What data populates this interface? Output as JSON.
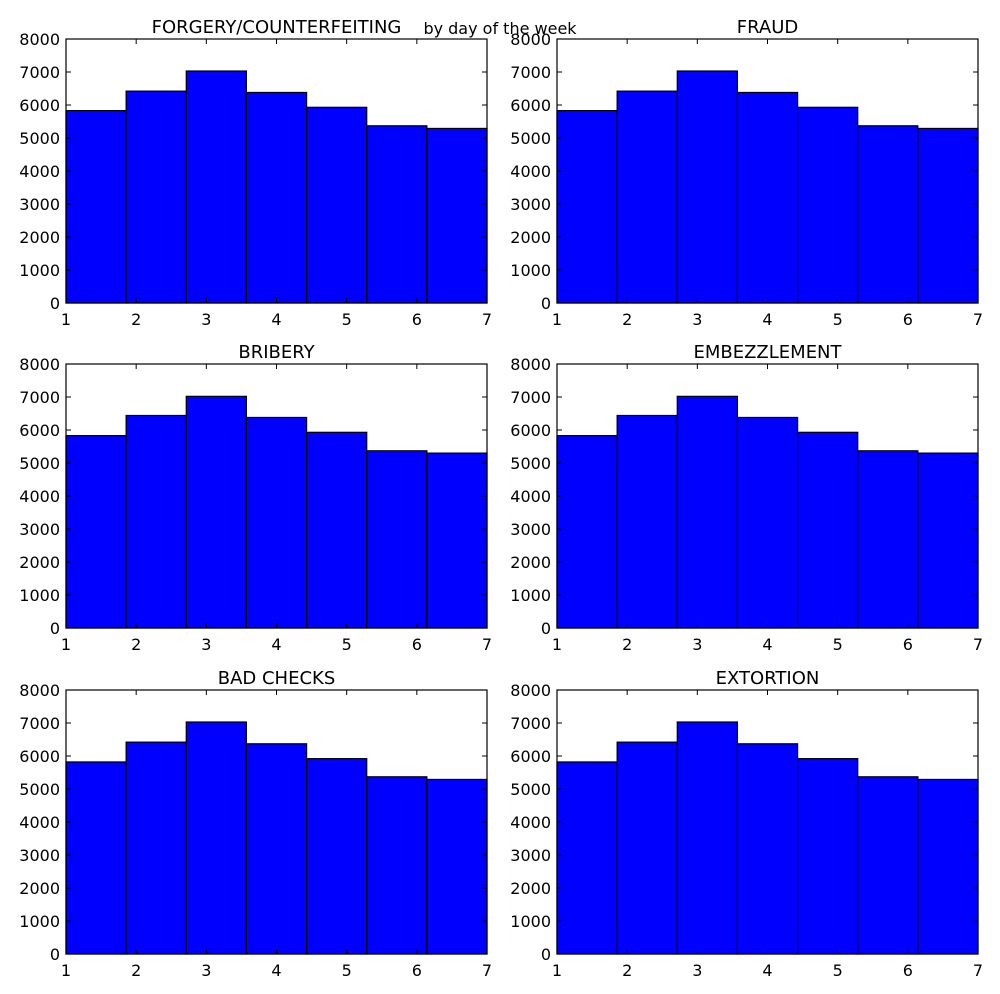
{
  "figure": {
    "suptitle": "by day of the week"
  },
  "style": {
    "bar_color": "#0000ff",
    "edge_color": "#000000",
    "background": "#ffffff"
  },
  "chart_data": [
    {
      "type": "bar",
      "title": "FORGERY/COUNTERFEITING",
      "bin_edges": [
        1,
        1.857,
        2.714,
        3.571,
        4.429,
        5.286,
        6.143,
        7
      ],
      "values": [
        5830,
        6420,
        7030,
        6380,
        5930,
        5370,
        5290
      ],
      "xlim": [
        1,
        7
      ],
      "ylim": [
        0,
        8000
      ],
      "xticks": [
        1,
        2,
        3,
        4,
        5,
        6,
        7
      ],
      "yticks": [
        0,
        1000,
        2000,
        3000,
        4000,
        5000,
        6000,
        7000,
        8000
      ],
      "xlabel": "",
      "ylabel": ""
    },
    {
      "type": "bar",
      "title": "FRAUD",
      "bin_edges": [
        1,
        1.857,
        2.714,
        3.571,
        4.429,
        5.286,
        6.143,
        7
      ],
      "values": [
        5830,
        6420,
        7030,
        6380,
        5930,
        5370,
        5290
      ],
      "xlim": [
        1,
        7
      ],
      "ylim": [
        0,
        8000
      ],
      "xticks": [
        1,
        2,
        3,
        4,
        5,
        6,
        7
      ],
      "yticks": [
        0,
        1000,
        2000,
        3000,
        4000,
        5000,
        6000,
        7000,
        8000
      ],
      "xlabel": "",
      "ylabel": ""
    },
    {
      "type": "bar",
      "title": "BRIBERY",
      "bin_edges": [
        1,
        1.857,
        2.714,
        3.571,
        4.429,
        5.286,
        6.143,
        7
      ],
      "values": [
        5830,
        6440,
        7020,
        6380,
        5930,
        5370,
        5300
      ],
      "xlim": [
        1,
        7
      ],
      "ylim": [
        0,
        8000
      ],
      "xticks": [
        1,
        2,
        3,
        4,
        5,
        6,
        7
      ],
      "yticks": [
        0,
        1000,
        2000,
        3000,
        4000,
        5000,
        6000,
        7000,
        8000
      ],
      "xlabel": "",
      "ylabel": ""
    },
    {
      "type": "bar",
      "title": "EMBEZZLEMENT",
      "bin_edges": [
        1,
        1.857,
        2.714,
        3.571,
        4.429,
        5.286,
        6.143,
        7
      ],
      "values": [
        5830,
        6440,
        7020,
        6380,
        5930,
        5370,
        5300
      ],
      "xlim": [
        1,
        7
      ],
      "ylim": [
        0,
        8000
      ],
      "xticks": [
        1,
        2,
        3,
        4,
        5,
        6,
        7
      ],
      "yticks": [
        0,
        1000,
        2000,
        3000,
        4000,
        5000,
        6000,
        7000,
        8000
      ],
      "xlabel": "",
      "ylabel": ""
    },
    {
      "type": "bar",
      "title": "BAD CHECKS",
      "bin_edges": [
        1,
        1.857,
        2.714,
        3.571,
        4.429,
        5.286,
        6.143,
        7
      ],
      "values": [
        5820,
        6420,
        7030,
        6370,
        5920,
        5370,
        5290
      ],
      "xlim": [
        1,
        7
      ],
      "ylim": [
        0,
        8000
      ],
      "xticks": [
        1,
        2,
        3,
        4,
        5,
        6,
        7
      ],
      "yticks": [
        0,
        1000,
        2000,
        3000,
        4000,
        5000,
        6000,
        7000,
        8000
      ],
      "xlabel": "",
      "ylabel": ""
    },
    {
      "type": "bar",
      "title": "EXTORTION",
      "bin_edges": [
        1,
        1.857,
        2.714,
        3.571,
        4.429,
        5.286,
        6.143,
        7
      ],
      "values": [
        5820,
        6420,
        7030,
        6370,
        5920,
        5370,
        5290
      ],
      "xlim": [
        1,
        7
      ],
      "ylim": [
        0,
        8000
      ],
      "xticks": [
        1,
        2,
        3,
        4,
        5,
        6,
        7
      ],
      "yticks": [
        0,
        1000,
        2000,
        3000,
        4000,
        5000,
        6000,
        7000,
        8000
      ],
      "xlabel": "",
      "ylabel": ""
    }
  ]
}
